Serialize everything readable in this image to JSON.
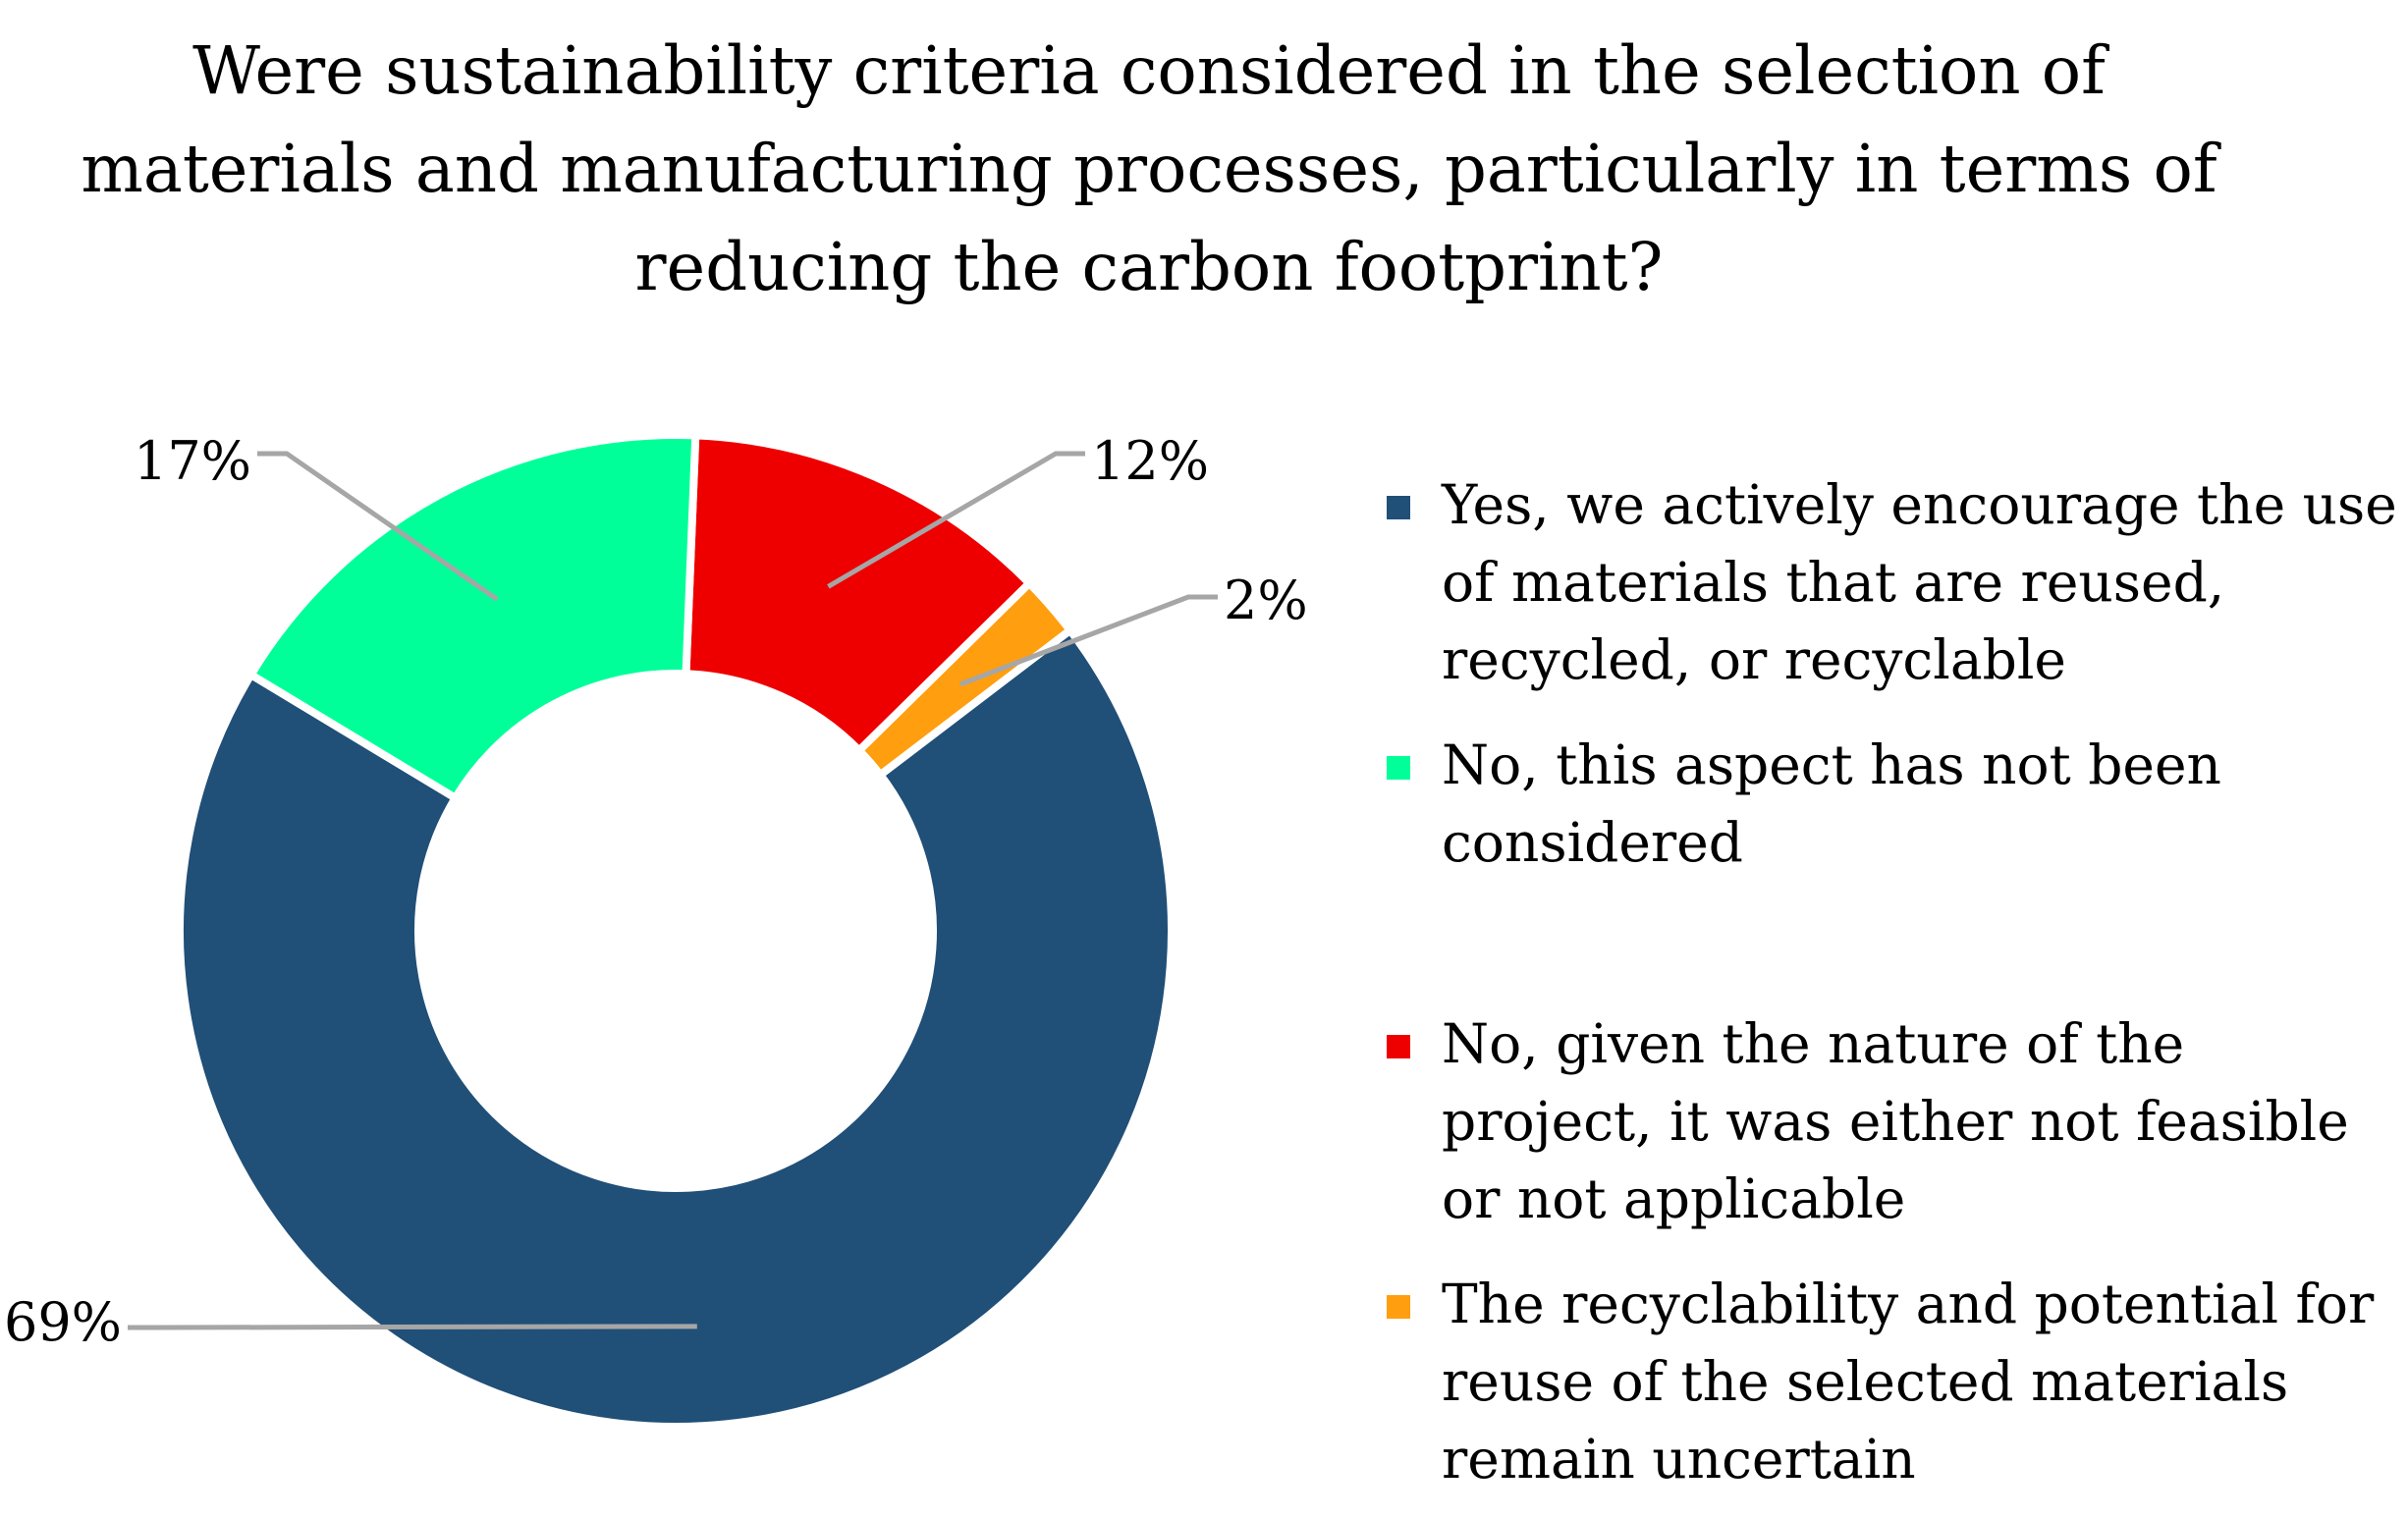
{
  "chart_data": {
    "type": "donut",
    "title": "Were sustainability criteria considered in the selection of materials and manufacturing processes, particularly in terms of reducing the carbon footprint?",
    "series": [
      {
        "values": [
          69,
          17,
          12,
          2
        ],
        "labels": [
          "69%",
          "17%",
          "12%",
          "2%"
        ]
      }
    ],
    "categories": [
      "Yes, we actively encourage the use of materials that are reused, recycled, or recyclable",
      "No, this aspect has not been considered",
      "No, given the nature of the project, it was either not feasible or not applicable",
      "The recyclability and potential for reuse of the selected materials remain uncertain"
    ],
    "colors": [
      "#204f77",
      "#00ff99",
      "#ee0000",
      "#ff9e0f"
    ],
    "legend_position": "right",
    "data_labels_position": "outside-with-leader-lines"
  }
}
